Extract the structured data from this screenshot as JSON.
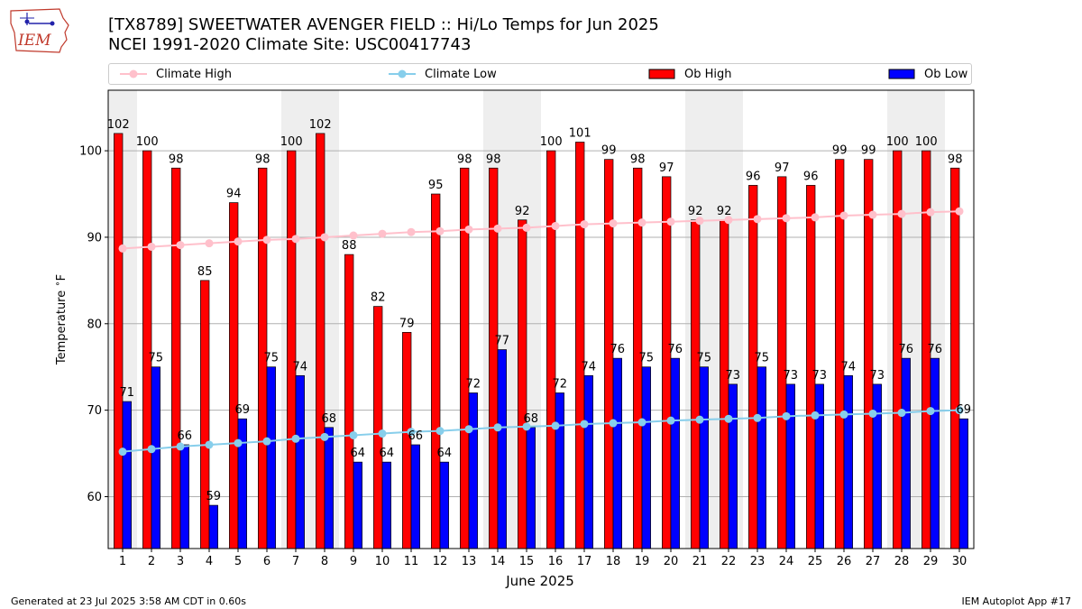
{
  "logo": {
    "text": "IEM"
  },
  "header": {
    "title_line1": "[TX8789] SWEETWATER AVENGER FIELD :: Hi/Lo Temps for Jun 2025",
    "title_line2": "NCEI 1991-2020 Climate Site: USC00417743"
  },
  "legend": [
    {
      "label": "Climate High",
      "kind": "line",
      "color": "#ffc0cb"
    },
    {
      "label": "Climate Low",
      "kind": "line",
      "color": "#87ceeb"
    },
    {
      "label": "Ob High",
      "kind": "bar",
      "color": "#ff0000"
    },
    {
      "label": "Ob Low",
      "kind": "bar",
      "color": "#0000ff"
    }
  ],
  "footer": {
    "left": "Generated at 23 Jul 2025 3:58 AM CDT in 0.60s",
    "right": "IEM Autoplot App #17"
  },
  "chart_data": {
    "type": "bar",
    "xlabel": "June 2025",
    "ylabel": "Temperature $^\\circ$F",
    "ylim": [
      54,
      107
    ],
    "yticks": [
      60,
      70,
      80,
      90,
      100
    ],
    "grid": "horizontal",
    "legend_placement": "top",
    "x": [
      1,
      2,
      3,
      4,
      5,
      6,
      7,
      8,
      9,
      10,
      11,
      12,
      13,
      14,
      15,
      16,
      17,
      18,
      19,
      20,
      21,
      22,
      23,
      24,
      25,
      26,
      27,
      28,
      29,
      30
    ],
    "weekend_shading_days": [
      1,
      7,
      8,
      14,
      15,
      21,
      22,
      28,
      29
    ],
    "series": [
      {
        "name": "Ob High",
        "kind": "bar",
        "color": "#ff0000",
        "values": [
          102,
          100,
          98,
          85,
          94,
          98,
          100,
          102,
          88,
          82,
          79,
          95,
          98,
          98,
          92,
          100,
          101,
          99,
          98,
          97,
          92,
          92,
          96,
          97,
          96,
          99,
          99,
          100,
          100,
          98
        ]
      },
      {
        "name": "Ob Low",
        "kind": "bar",
        "color": "#0000ff",
        "values": [
          71,
          75,
          66,
          59,
          69,
          75,
          74,
          68,
          64,
          64,
          66,
          64,
          72,
          77,
          68,
          72,
          74,
          76,
          75,
          76,
          75,
          73,
          75,
          73,
          73,
          74,
          73,
          76,
          76,
          69
        ]
      },
      {
        "name": "Climate High",
        "kind": "line",
        "color": "#ffc0cb",
        "values": [
          88.7,
          88.9,
          89.1,
          89.3,
          89.5,
          89.7,
          89.8,
          90.0,
          90.2,
          90.4,
          90.6,
          90.7,
          90.9,
          91.0,
          91.1,
          91.3,
          91.5,
          91.6,
          91.7,
          91.8,
          91.9,
          92.0,
          92.1,
          92.2,
          92.3,
          92.5,
          92.6,
          92.7,
          92.9,
          93.0
        ]
      },
      {
        "name": "Climate Low",
        "kind": "line",
        "color": "#87ceeb",
        "values": [
          65.2,
          65.5,
          65.8,
          66.0,
          66.2,
          66.4,
          66.7,
          66.9,
          67.1,
          67.3,
          67.5,
          67.6,
          67.8,
          68.0,
          68.1,
          68.2,
          68.4,
          68.5,
          68.6,
          68.8,
          68.9,
          69.0,
          69.1,
          69.3,
          69.4,
          69.5,
          69.6,
          69.7,
          69.9,
          70.0
        ]
      }
    ]
  }
}
